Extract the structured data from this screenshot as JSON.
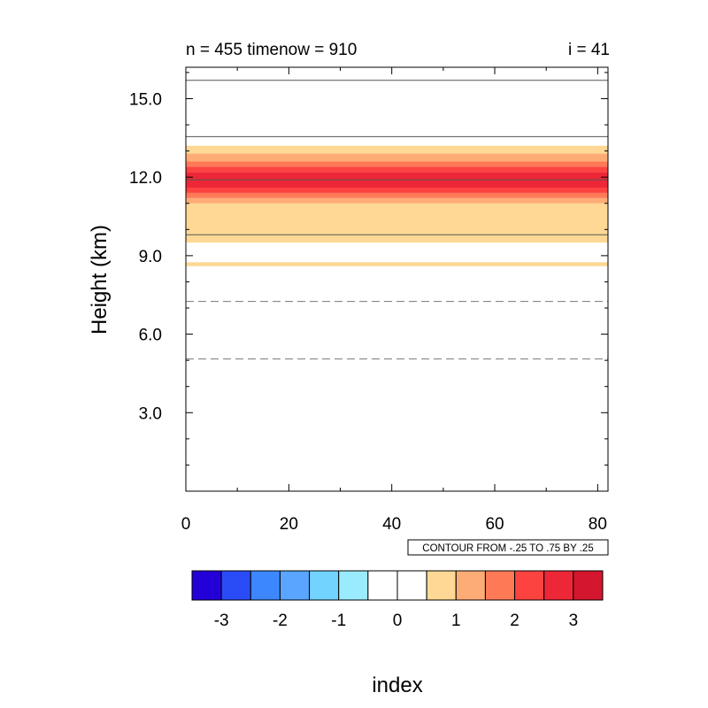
{
  "chart_data": {
    "type": "heatmap",
    "title_left": "n = 455 timenow = 910",
    "title_right": "i = 41",
    "xlabel": "index",
    "ylabel": "Height (km)",
    "xlim": [
      0,
      82
    ],
    "ylim": [
      0,
      16.2
    ],
    "x_ticks": [
      0,
      20,
      40,
      60,
      80
    ],
    "x_tick_labels": [
      "0",
      "20",
      "40",
      "60",
      "80"
    ],
    "y_ticks": [
      3,
      6,
      9,
      12,
      15
    ],
    "y_tick_labels": [
      "3.0",
      "6.0",
      "9.0",
      "12.0",
      "15.0"
    ],
    "info_label": "CONTOUR FROM -.25 TO .75 BY .25",
    "filled_bands": [
      {
        "y0": 8.6,
        "y1": 8.75,
        "level": 1
      },
      {
        "y0": 9.5,
        "y1": 11.0,
        "level": 1
      },
      {
        "y0": 11.0,
        "y1": 11.2,
        "level": 2
      },
      {
        "y0": 11.2,
        "y1": 11.4,
        "level": 3
      },
      {
        "y0": 11.4,
        "y1": 11.6,
        "level": 4
      },
      {
        "y0": 11.6,
        "y1": 12.2,
        "level": 5
      },
      {
        "y0": 12.2,
        "y1": 12.4,
        "level": 4
      },
      {
        "y0": 12.4,
        "y1": 12.6,
        "level": 3
      },
      {
        "y0": 12.6,
        "y1": 12.9,
        "level": 2
      },
      {
        "y0": 12.9,
        "y1": 13.2,
        "level": 1
      }
    ],
    "contour_lines": [
      {
        "y": 15.7,
        "style": "solid"
      },
      {
        "y": 13.55,
        "style": "solid"
      },
      {
        "y": 11.9,
        "style": "solid"
      },
      {
        "y": 9.8,
        "style": "solid"
      },
      {
        "y": 7.25,
        "style": "dashed"
      },
      {
        "y": 5.05,
        "style": "dashed"
      }
    ],
    "colorbar": {
      "colors": [
        "#2400d8",
        "#2a4cf6",
        "#3d87fe",
        "#59a5ff",
        "#72d3fe",
        "#9bebff",
        "#ffffff",
        "#ffffff",
        "#fed894",
        "#feac75",
        "#fe7a56",
        "#fc4340",
        "#ed2737",
        "#d4162e"
      ],
      "tick_labels": [
        "-3",
        "-2",
        "-1",
        "0",
        "1",
        "2",
        "3"
      ]
    }
  }
}
